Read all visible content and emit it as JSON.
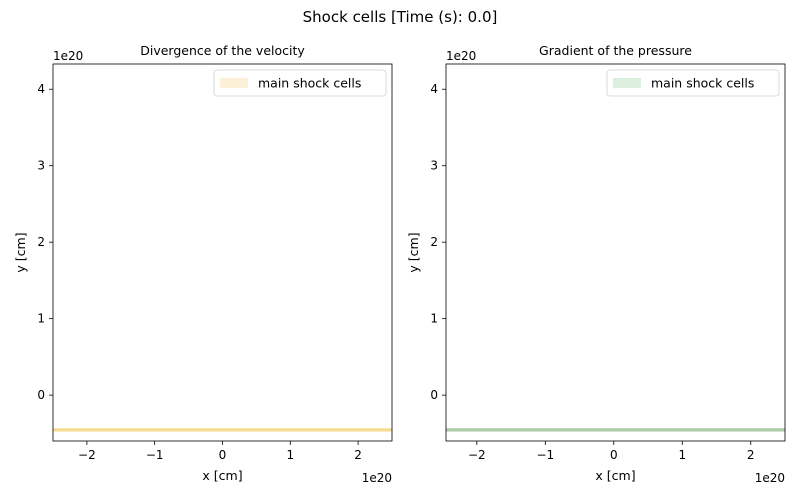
{
  "figure": {
    "suptitle": "Shock cells [Time (s): 0.0]"
  },
  "chart_data": [
    {
      "type": "area",
      "title": "Divergence of the velocity",
      "xlabel": "x [cm]",
      "ylabel": "y [cm]",
      "x_scale_label": "1e20",
      "y_scale_label": "1e20",
      "xlim": [
        -2.5,
        2.5
      ],
      "ylim": [
        -0.6,
        4.33
      ],
      "xticks": [
        -2,
        -1,
        0,
        1,
        2
      ],
      "yticks": [
        0,
        1,
        2,
        3,
        4
      ],
      "grid": false,
      "legend_position": "upper right",
      "series": [
        {
          "name": "main shock cells",
          "color": "#f5d98a",
          "legend_color": "#fdf0d8",
          "x": [
            -2.5,
            2.5
          ],
          "y_low": [
            -0.47,
            -0.47
          ],
          "y_high": [
            -0.44,
            -0.44
          ]
        }
      ]
    },
    {
      "type": "area",
      "title": "Gradient of the pressure",
      "xlabel": "x [cm]",
      "ylabel": "y [cm]",
      "x_scale_label": "1e20",
      "y_scale_label": "1e20",
      "xlim": [
        -2.45,
        2.5
      ],
      "ylim": [
        -0.6,
        4.33
      ],
      "xticks": [
        -2,
        -1,
        0,
        1,
        2
      ],
      "yticks": [
        0,
        1,
        2,
        3,
        4
      ],
      "grid": false,
      "legend_position": "upper right",
      "series": [
        {
          "name": "main shock cells",
          "color": "#a8c8a2",
          "legend_color": "#dceedd",
          "x": [
            -2.45,
            2.5
          ],
          "y_low": [
            -0.47,
            -0.47
          ],
          "y_high": [
            -0.44,
            -0.44
          ]
        }
      ]
    }
  ]
}
